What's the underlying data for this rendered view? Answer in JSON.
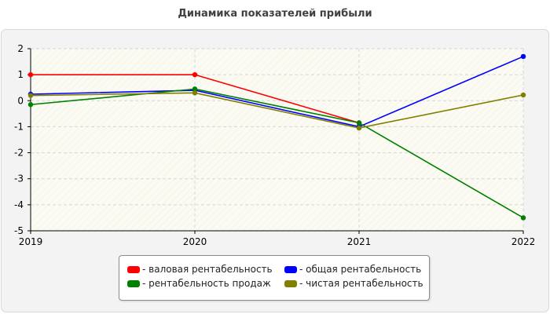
{
  "chart_data": {
    "type": "line",
    "title": "Динамика показателей прибыли",
    "categories": [
      "2019",
      "2020",
      "2021",
      "2022"
    ],
    "ylim": [
      -5,
      2
    ],
    "yticks": [
      "2",
      "1",
      "0",
      "-1",
      "-2",
      "-3",
      "-4",
      "-5"
    ],
    "grid": true,
    "legend_position": "bottom",
    "series": [
      {
        "name": "- валовая рентабельность",
        "color": "#ff0000",
        "values": [
          1.0,
          1.0,
          -0.85,
          null
        ]
      },
      {
        "name": "- общая рентабельность",
        "color": "#0000ff",
        "values": [
          0.25,
          0.4,
          -1.0,
          1.7
        ]
      },
      {
        "name": "- рентабельность продаж",
        "color": "#008000",
        "values": [
          -0.15,
          0.45,
          -0.85,
          -4.5
        ]
      },
      {
        "name": "- чистая рентабельность",
        "color": "#808000",
        "values": [
          0.2,
          0.3,
          -1.05,
          0.22
        ]
      }
    ]
  }
}
